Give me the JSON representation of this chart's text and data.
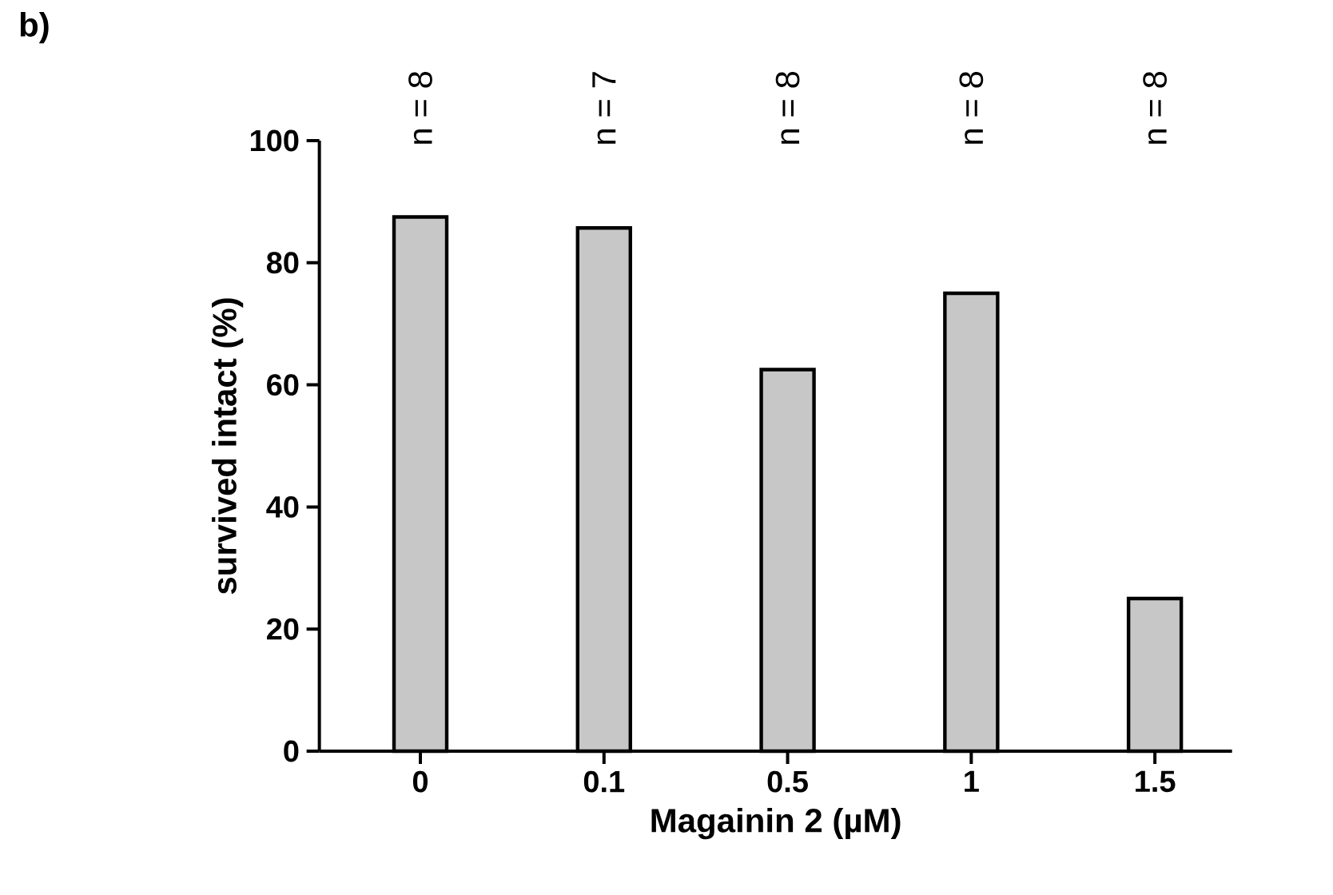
{
  "chart_data": {
    "type": "bar",
    "xlabel": "Magainin 2 (µM)",
    "ylabel": "survived intact (%)",
    "categories": [
      "0",
      "0.1",
      "0.5",
      "1",
      "1.5"
    ],
    "values": [
      87.5,
      85.7,
      62.5,
      75,
      25
    ],
    "color": "#000000",
    "ylim": [
      0,
      100
    ],
    "yticks": [
      0,
      20,
      40,
      60,
      80,
      100
    ],
    "grid": false,
    "annotations": [
      "b)",
      "n = 8",
      "n = 7",
      "n = 8",
      "n = 8",
      "n = 8"
    ]
  }
}
